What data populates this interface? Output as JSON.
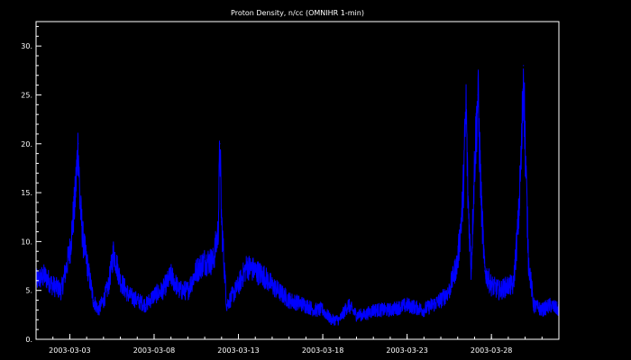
{
  "chart_data": {
    "type": "line",
    "title": "Proton Density, n/cc (OMNIHR 1-min)",
    "xlabel": "",
    "ylabel": "",
    "x_range": [
      "2003-03-01",
      "2003-04-01"
    ],
    "xlim": [
      0,
      31
    ],
    "ylim": [
      0,
      32.5
    ],
    "x_tick_values": [
      2,
      7,
      12,
      17,
      22,
      27
    ],
    "x_tick_labels": [
      "2003-03-03",
      "2003-03-08",
      "2003-03-13",
      "2003-03-18",
      "2003-03-23",
      "2003-03-28"
    ],
    "y_ticks": [
      0,
      5,
      10,
      15,
      20,
      25,
      30
    ],
    "y_tick_labels": [
      "0.",
      "5.",
      "10.",
      "15.",
      "20.",
      "25.",
      "30."
    ],
    "background": "#000000",
    "axis_color": "#ffffff",
    "grid": false,
    "series": [
      {
        "color": "#0000ff",
        "x_unit": "days after 2003-03-01",
        "x": [
          0,
          0.5,
          1.0,
          1.5,
          2.0,
          2.3,
          2.5,
          2.6,
          2.8,
          3.0,
          3.4,
          3.7,
          4.0,
          4.3,
          4.6,
          5.0,
          5.5,
          6.0,
          6.5,
          7.0,
          7.5,
          8.0,
          8.5,
          9.0,
          9.5,
          10.0,
          10.5,
          10.8,
          10.9,
          11.0,
          11.3,
          12.0,
          12.5,
          13.0,
          13.5,
          14.0,
          15.0,
          16.0,
          16.5,
          17.0,
          17.5,
          18.0,
          18.5,
          19.0,
          19.5,
          20.0,
          21.0,
          22.0,
          23.0,
          24.0,
          24.5,
          25.0,
          25.3,
          25.5,
          25.6,
          25.8,
          26.0,
          26.2,
          26.4,
          26.6,
          27.0,
          27.5,
          28.0,
          28.3,
          28.6,
          28.8,
          28.9,
          29.0,
          29.2,
          29.5,
          30.0,
          30.5,
          31.0
        ],
        "values": [
          6.0,
          6.5,
          5.5,
          5.0,
          9.0,
          14.0,
          20.0,
          14.0,
          10.0,
          8.0,
          4.0,
          3.0,
          4.0,
          5.5,
          9.0,
          6.0,
          4.5,
          4.0,
          3.5,
          4.5,
          5.0,
          6.5,
          5.0,
          5.0,
          7.0,
          8.0,
          8.0,
          11.0,
          20.0,
          12.0,
          3.5,
          5.5,
          7.5,
          7.0,
          6.5,
          5.5,
          4.0,
          3.5,
          3.0,
          3.0,
          2.0,
          2.0,
          3.5,
          2.5,
          2.5,
          3.0,
          3.0,
          3.5,
          3.0,
          4.0,
          5.0,
          8.0,
          14.0,
          24.0,
          15.0,
          7.0,
          18.0,
          25.0,
          14.0,
          7.0,
          5.5,
          5.0,
          5.5,
          5.5,
          12.0,
          20.0,
          28.0,
          20.0,
          8.0,
          3.5,
          3.0,
          3.5,
          3.0
        ]
      }
    ]
  }
}
